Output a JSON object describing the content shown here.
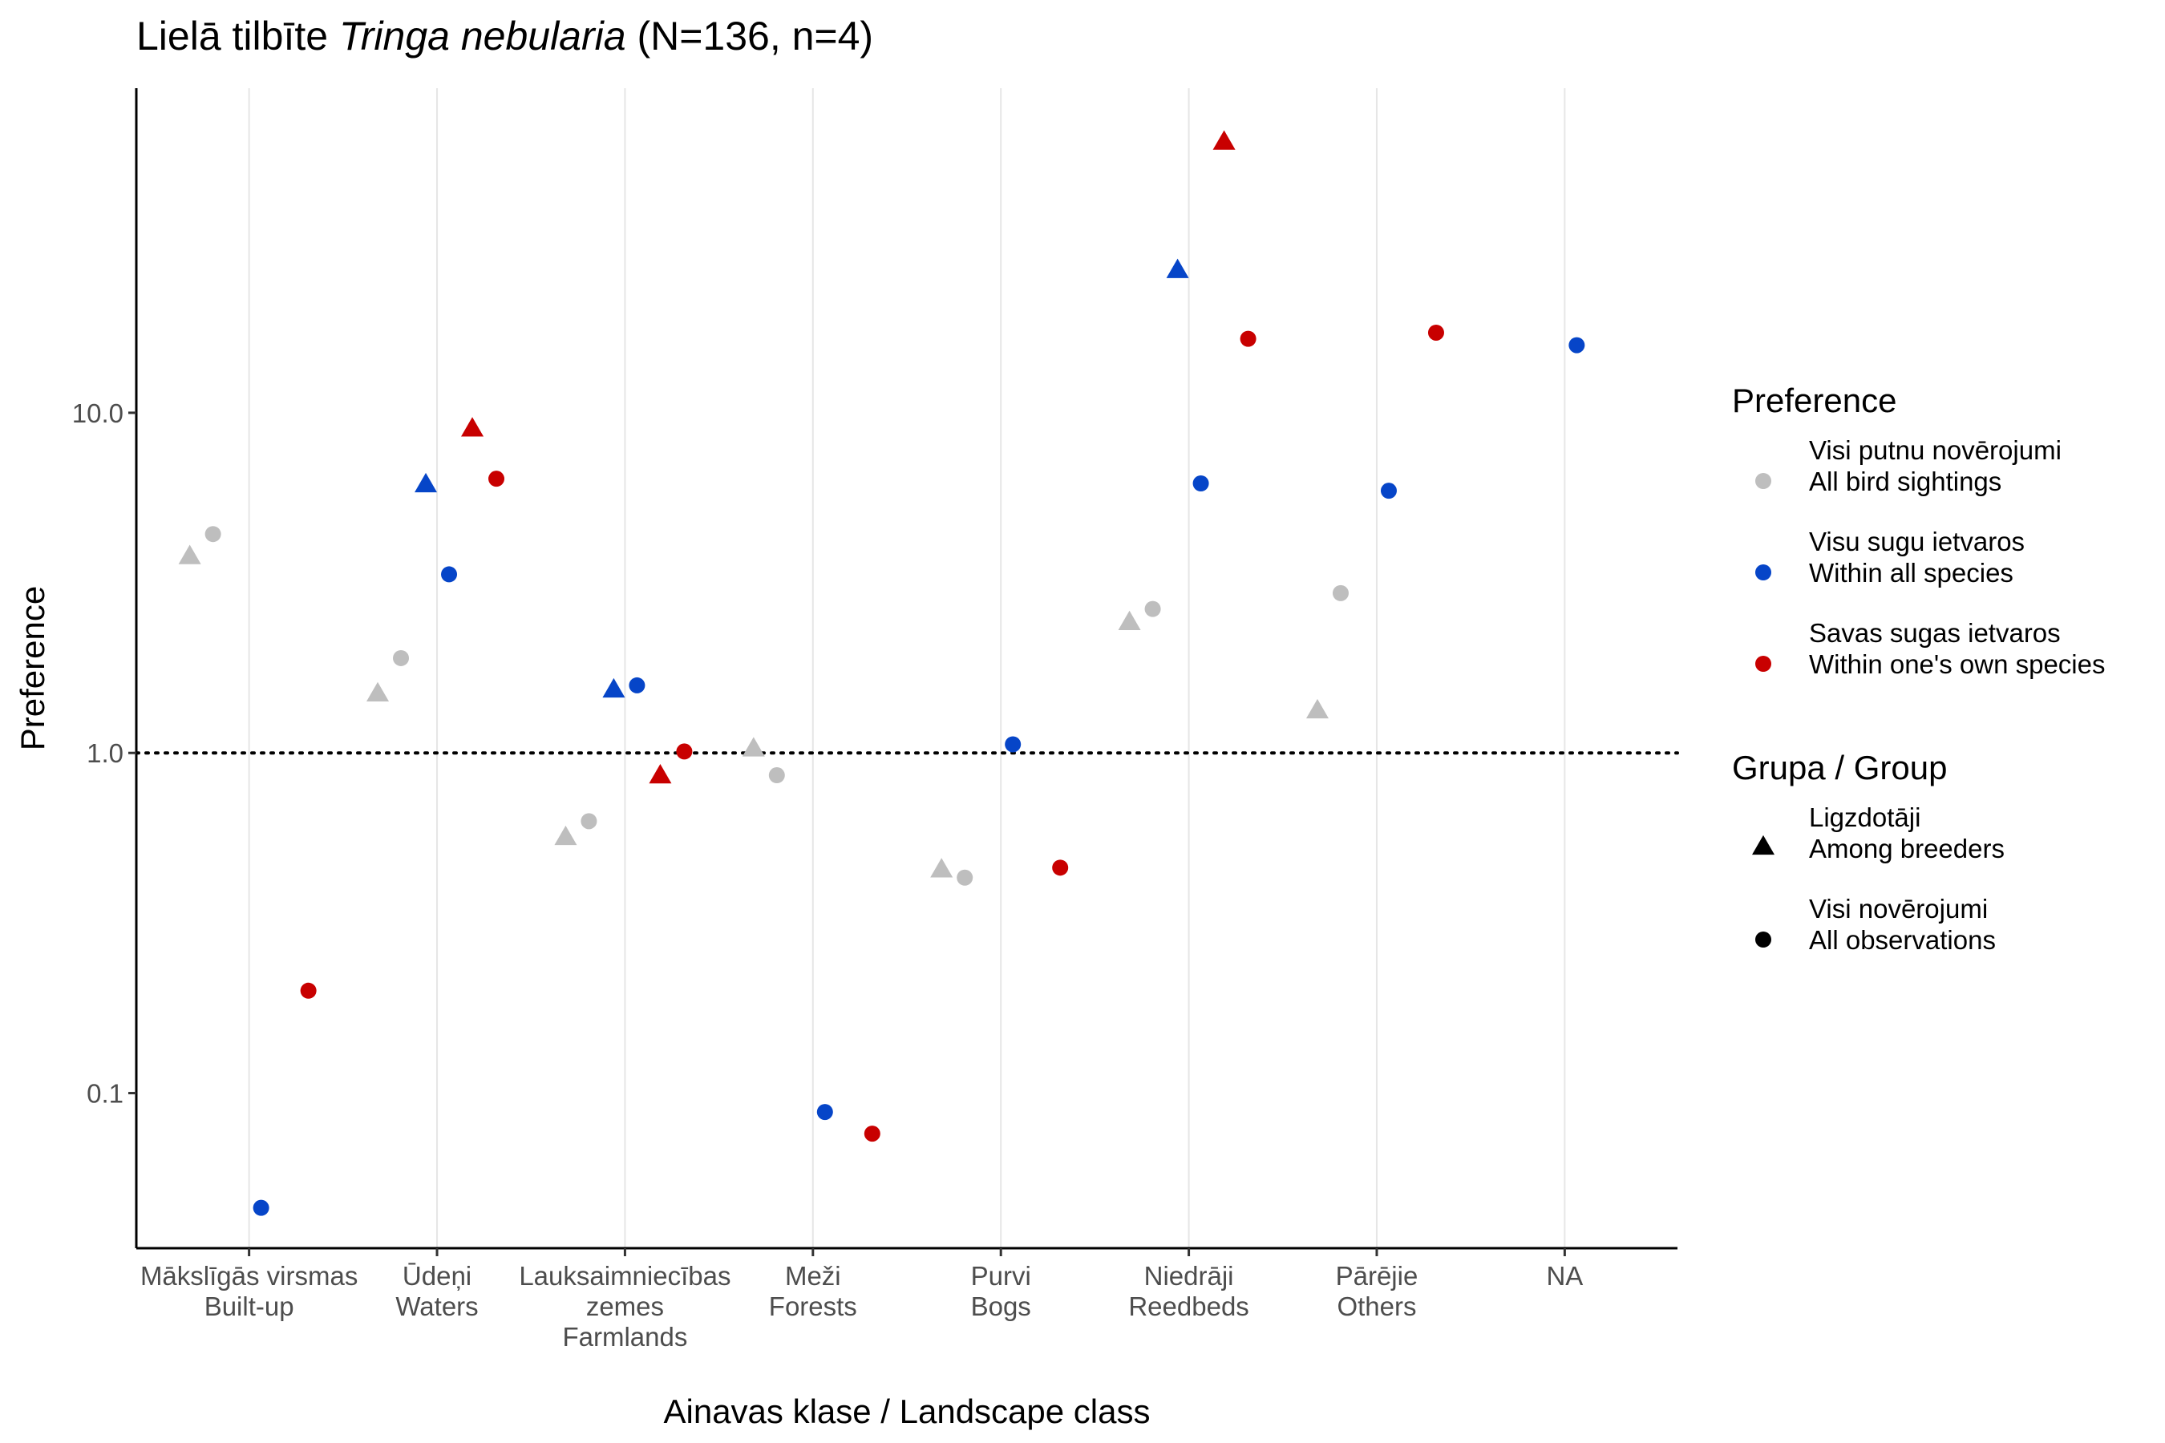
{
  "chart_data": {
    "type": "scatter",
    "title": {
      "prefix": "Lielā tilbīte ",
      "species": "Tringa nebularia",
      "suffix": " (N=136, n=4)"
    },
    "xlabel": "Ainavas klase / Landscape class",
    "ylabel": "Preference",
    "y_scale": "log10",
    "ylim": [
      0.035,
      90
    ],
    "y_ticks": [
      0.1,
      1.0,
      10.0
    ],
    "y_tick_labels": [
      "0.1",
      "1.0",
      "10.0"
    ],
    "reference_line": 1.0,
    "grid": "vertical major gridlines only",
    "categories": [
      [
        "Mākslīgās virsmas",
        "Built-up"
      ],
      [
        "Ūdeņi",
        "Waters"
      ],
      [
        "Lauksaimniecības",
        "zemes",
        "Farmlands"
      ],
      [
        "Meži",
        "Forests"
      ],
      [
        "Purvi",
        "Bogs"
      ],
      [
        "Niedrāji",
        "Reedbeds"
      ],
      [
        "Pārējie",
        "Others"
      ],
      [
        "NA"
      ]
    ],
    "series": [
      {
        "name": "Visi putnu novērojumi All bird sightings",
        "key": "all_sightings",
        "color": "#bebebe",
        "breeders": [
          3.75,
          1.48,
          0.56,
          1.02,
          0.45,
          2.4,
          1.32,
          null
        ],
        "all_observations": [
          4.4,
          1.9,
          0.63,
          0.86,
          0.43,
          2.65,
          2.95,
          null
        ]
      },
      {
        "name": "Visu sugu ietvaros Within all species",
        "key": "within_all",
        "color": "#0645c8",
        "breeders": [
          null,
          6.1,
          1.52,
          null,
          null,
          26,
          null,
          null
        ],
        "all_observations": [
          0.046,
          3.35,
          1.58,
          0.088,
          1.06,
          6.2,
          5.9,
          15.8
        ]
      },
      {
        "name": "Savas sugas ietvaros Within one's own species",
        "key": "within_own",
        "color": "#c80000",
        "breeders": [
          null,
          8.9,
          0.85,
          null,
          null,
          62,
          null,
          null
        ],
        "all_observations": [
          0.2,
          6.4,
          1.01,
          0.076,
          0.46,
          16.5,
          17.2,
          null
        ]
      }
    ],
    "legend": {
      "placement": "right",
      "color_title": "Preference",
      "color_entries": [
        [
          "Visi putnu novērojumi",
          "All bird sightings"
        ],
        [
          "Visu sugu ietvaros",
          "Within all species"
        ],
        [
          "Savas sugas ietvaros",
          "Within one's own species"
        ]
      ],
      "shape_title": "Grupa / Group",
      "shape_entries": [
        {
          "shape": "triangle",
          "lines": [
            "Ligzdotāji",
            "Among breeders"
          ]
        },
        {
          "shape": "circle",
          "lines": [
            "Visi novērojumi",
            "All observations"
          ]
        }
      ]
    }
  }
}
